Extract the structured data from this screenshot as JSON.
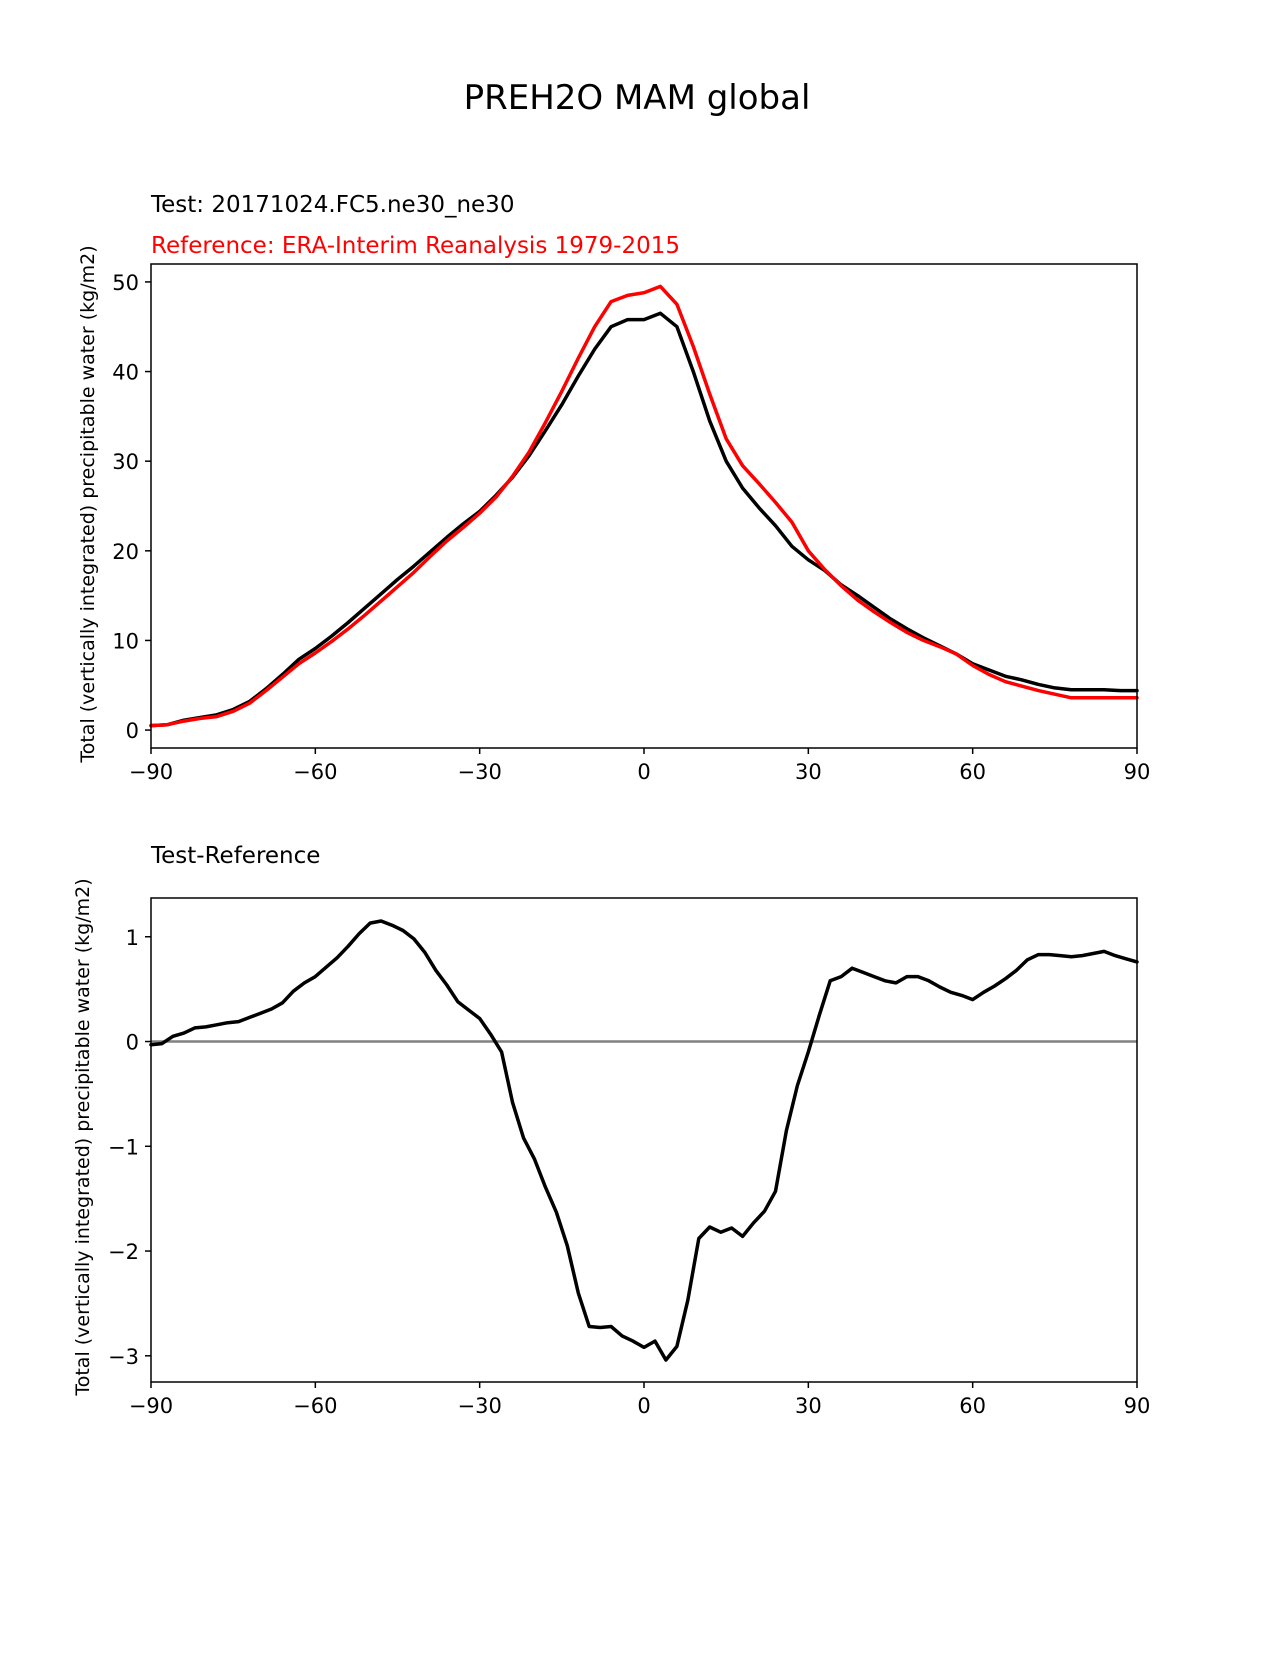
{
  "figure": {
    "suptitle": "PREH2O MAM global",
    "colors": {
      "test": "#000000",
      "reference": "#ff0000",
      "zero_line": "#808080"
    }
  },
  "chart_data": [
    {
      "type": "line",
      "title_test": "Test: 20171024.FC5.ne30_ne30",
      "title_reference": "Reference: ERA-Interim Reanalysis 1979-2015",
      "xlabel": "",
      "ylabel": "Total (vertically integrated) precipitable water (kg/m2)",
      "xlim": [
        -90,
        90
      ],
      "ylim": [
        -2,
        52
      ],
      "xticks": [
        -90,
        -60,
        -30,
        0,
        30,
        60,
        90
      ],
      "xtick_labels": [
        "−90",
        "−60",
        "−30",
        "0",
        "30",
        "60",
        "90"
      ],
      "yticks": [
        0,
        10,
        20,
        30,
        40,
        50
      ],
      "ytick_labels": [
        "0",
        "10",
        "20",
        "30",
        "40",
        "50"
      ],
      "series": [
        {
          "name": "Test",
          "color": "#000000",
          "x": [
            -90,
            -87,
            -84,
            -81,
            -78,
            -75,
            -72,
            -69,
            -66,
            -63,
            -60,
            -57,
            -54,
            -51,
            -48,
            -45,
            -42,
            -39,
            -36,
            -33,
            -30,
            -27,
            -24,
            -21,
            -18,
            -15,
            -12,
            -9,
            -6,
            -3,
            0,
            3,
            6,
            9,
            12,
            15,
            18,
            21,
            24,
            27,
            30,
            33,
            36,
            39,
            42,
            45,
            48,
            51,
            54,
            57,
            60,
            63,
            66,
            69,
            72,
            75,
            78,
            81,
            84,
            87,
            90
          ],
          "y": [
            0.5,
            0.6,
            1.1,
            1.4,
            1.7,
            2.3,
            3.2,
            4.6,
            6.2,
            7.9,
            9.1,
            10.5,
            12.0,
            13.6,
            15.2,
            16.8,
            18.3,
            19.9,
            21.5,
            23.0,
            24.4,
            26.2,
            28.2,
            30.6,
            33.4,
            36.3,
            39.5,
            42.5,
            45.0,
            45.8,
            45.8,
            46.5,
            45.0,
            40.0,
            34.5,
            30.0,
            27.0,
            24.8,
            22.8,
            20.5,
            19.0,
            17.8,
            16.2,
            15.0,
            13.7,
            12.4,
            11.3,
            10.3,
            9.4,
            8.5,
            7.4,
            6.7,
            6.0,
            5.6,
            5.1,
            4.7,
            4.5,
            4.5,
            4.5,
            4.4,
            4.4
          ]
        },
        {
          "name": "Reference",
          "color": "#ff0000",
          "x": [
            -90,
            -87,
            -84,
            -81,
            -78,
            -75,
            -72,
            -69,
            -66,
            -63,
            -60,
            -57,
            -54,
            -51,
            -48,
            -45,
            -42,
            -39,
            -36,
            -33,
            -30,
            -27,
            -24,
            -21,
            -18,
            -15,
            -12,
            -9,
            -6,
            -3,
            0,
            3,
            6,
            9,
            12,
            15,
            18,
            21,
            24,
            27,
            30,
            33,
            36,
            39,
            42,
            45,
            48,
            51,
            54,
            57,
            60,
            63,
            66,
            69,
            72,
            75,
            78,
            81,
            84,
            87,
            90
          ],
          "y": [
            0.5,
            0.6,
            1.0,
            1.3,
            1.5,
            2.1,
            3.0,
            4.4,
            5.9,
            7.4,
            8.6,
            9.9,
            11.3,
            12.8,
            14.4,
            16.0,
            17.6,
            19.4,
            21.1,
            22.6,
            24.2,
            26.0,
            28.3,
            31.0,
            34.3,
            37.8,
            41.5,
            45.0,
            47.8,
            48.5,
            48.8,
            49.5,
            47.5,
            42.8,
            37.5,
            32.5,
            29.5,
            27.5,
            25.4,
            23.2,
            20.0,
            17.9,
            16.1,
            14.5,
            13.2,
            12.0,
            10.9,
            10.0,
            9.3,
            8.5,
            7.2,
            6.2,
            5.4,
            4.9,
            4.4,
            4.0,
            3.6,
            3.6,
            3.6,
            3.6,
            3.6
          ]
        }
      ]
    },
    {
      "type": "line",
      "title": "Test-Reference",
      "xlabel": "",
      "ylabel": "Total (vertically integrated) precipitable water (kg/m2)",
      "xlim": [
        -90,
        90
      ],
      "ylim": [
        -3.25,
        1.37
      ],
      "xticks": [
        -90,
        -60,
        -30,
        0,
        30,
        60,
        90
      ],
      "xtick_labels": [
        "−90",
        "−60",
        "−30",
        "0",
        "30",
        "60",
        "90"
      ],
      "yticks": [
        -3,
        -2,
        -1,
        0,
        1
      ],
      "ytick_labels": [
        "−3",
        "−2",
        "−1",
        "0",
        "1"
      ],
      "zero_line": true,
      "series": [
        {
          "name": "Test-Reference",
          "color": "#000000",
          "x": [
            -90,
            -88,
            -86,
            -84,
            -82,
            -80,
            -78,
            -76,
            -74,
            -72,
            -70,
            -68,
            -66,
            -64,
            -62,
            -60,
            -58,
            -56,
            -54,
            -52,
            -50,
            -48,
            -46,
            -44,
            -42,
            -40,
            -38,
            -36,
            -34,
            -32,
            -30,
            -28,
            -26,
            -24,
            -22,
            -20,
            -18,
            -16,
            -14,
            -12,
            -10,
            -8,
            -6,
            -4,
            -2,
            0,
            2,
            4,
            6,
            8,
            10,
            12,
            14,
            16,
            18,
            20,
            22,
            24,
            26,
            28,
            30,
            32,
            34,
            36,
            38,
            40,
            42,
            44,
            46,
            48,
            50,
            52,
            54,
            56,
            58,
            60,
            62,
            64,
            66,
            68,
            70,
            72,
            74,
            76,
            78,
            80,
            82,
            84,
            86,
            88,
            90
          ],
          "y": [
            -0.03,
            -0.02,
            0.05,
            0.08,
            0.13,
            0.14,
            0.16,
            0.18,
            0.19,
            0.23,
            0.27,
            0.31,
            0.37,
            0.48,
            0.56,
            0.62,
            0.71,
            0.8,
            0.91,
            1.03,
            1.13,
            1.15,
            1.11,
            1.06,
            0.98,
            0.85,
            0.68,
            0.54,
            0.38,
            0.3,
            0.22,
            0.07,
            -0.1,
            -0.58,
            -0.92,
            -1.12,
            -1.39,
            -1.63,
            -1.95,
            -2.4,
            -2.72,
            -2.73,
            -2.72,
            -2.81,
            -2.86,
            -2.92,
            -2.86,
            -3.04,
            -2.91,
            -2.47,
            -1.88,
            -1.77,
            -1.82,
            -1.78,
            -1.86,
            -1.73,
            -1.62,
            -1.43,
            -0.85,
            -0.42,
            -0.1,
            0.25,
            0.58,
            0.62,
            0.7,
            0.66,
            0.62,
            0.58,
            0.56,
            0.62,
            0.62,
            0.58,
            0.52,
            0.47,
            0.44,
            0.4,
            0.47,
            0.53,
            0.6,
            0.68,
            0.78,
            0.83,
            0.83,
            0.82,
            0.81,
            0.82,
            0.84,
            0.86,
            0.82,
            0.79,
            0.76
          ]
        }
      ]
    }
  ]
}
